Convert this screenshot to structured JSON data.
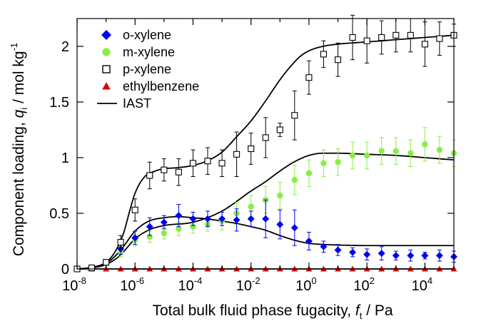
{
  "chart_data": {
    "type": "scatter",
    "x_scale": "log",
    "xlim": [
      1e-08,
      100000
    ],
    "ylim": [
      0,
      2.25
    ],
    "x_ticks": [
      1e-08,
      1e-06,
      0.0001,
      0.01,
      1,
      100,
      10000
    ],
    "y_ticks": [
      0,
      0.5,
      1,
      1.5,
      2
    ],
    "x_tick_labels": [
      {
        "base": "10",
        "exp": "-8"
      },
      {
        "base": "10",
        "exp": "-6"
      },
      {
        "base": "10",
        "exp": "-4"
      },
      {
        "base": "10",
        "exp": "-2"
      },
      {
        "base": "10",
        "exp": "0"
      },
      {
        "base": "10",
        "exp": "2"
      },
      {
        "base": "10",
        "exp": "4"
      }
    ],
    "y_tick_labels": [
      "0",
      "0.5",
      "1",
      "1.5",
      "2"
    ],
    "xlabel": {
      "pre": "Total bulk fluid phase fugacity, ",
      "sym": "f",
      "sub": "t",
      "post": " / Pa"
    },
    "ylabel": {
      "pre": "Component loading, ",
      "sym": "q",
      "sub": "i",
      "post": " / mol kg",
      "sup": "-1"
    },
    "grid": false,
    "legend_position": "top-left",
    "series": [
      {
        "name": "o-xylene",
        "marker": "diamond",
        "color": "#0000ee",
        "x": [
          1e-08,
          3.2e-08,
          1e-07,
          3.2e-07,
          1e-06,
          3.2e-06,
          1e-05,
          3.2e-05,
          0.0001,
          0.00032,
          0.001,
          0.0032,
          0.01,
          0.032,
          0.1,
          0.32,
          1,
          3.2,
          10,
          32,
          100,
          320,
          1000,
          3200,
          10000,
          32000,
          100000
        ],
        "y": [
          0,
          0.01,
          0.06,
          0.18,
          0.28,
          0.38,
          0.42,
          0.48,
          0.45,
          0.45,
          0.45,
          0.44,
          0.45,
          0.45,
          0.4,
          0.37,
          0.25,
          0.2,
          0.17,
          0.15,
          0.13,
          0.14,
          0.12,
          0.12,
          0.12,
          0.12,
          0.11
        ],
        "err": [
          0,
          0.01,
          0.02,
          0.05,
          0.06,
          0.08,
          0.06,
          0.1,
          0.06,
          0.07,
          0.06,
          0.1,
          0.07,
          0.17,
          0.13,
          0.16,
          0.08,
          0.05,
          0.05,
          0.04,
          0.05,
          0.06,
          0.04,
          0.05,
          0.03,
          0.05,
          0.05
        ]
      },
      {
        "name": "m-xylene",
        "marker": "circle",
        "color": "#88ee44",
        "x": [
          1e-08,
          3.2e-08,
          1e-07,
          3.2e-07,
          1e-06,
          3.2e-06,
          1e-05,
          3.2e-05,
          0.0001,
          0.00032,
          0.001,
          0.0032,
          0.01,
          0.032,
          0.1,
          0.32,
          1,
          3.2,
          10,
          32,
          100,
          320,
          1000,
          3200,
          10000,
          32000,
          100000
        ],
        "y": [
          0,
          0.01,
          0.05,
          0.15,
          0.26,
          0.29,
          0.32,
          0.36,
          0.38,
          0.4,
          0.43,
          0.5,
          0.56,
          0.62,
          0.66,
          0.8,
          0.86,
          0.95,
          0.96,
          1.02,
          1.02,
          1.06,
          1.06,
          1.04,
          1.12,
          1.07,
          1.04
        ],
        "err": [
          0,
          0.01,
          0.02,
          0.04,
          0.05,
          0.05,
          0.05,
          0.06,
          0.06,
          0.06,
          0.08,
          0.1,
          0.1,
          0.12,
          0.12,
          0.13,
          0.12,
          0.12,
          0.12,
          0.12,
          0.12,
          0.12,
          0.12,
          0.12,
          0.15,
          0.12,
          0.12
        ]
      },
      {
        "name": "p-xylene",
        "marker": "square-open",
        "color": "#000000",
        "x": [
          1e-08,
          3.2e-08,
          1e-07,
          3.2e-07,
          1e-06,
          3.2e-06,
          1e-05,
          3.2e-05,
          0.0001,
          0.00032,
          0.001,
          0.0032,
          0.01,
          0.032,
          0.1,
          0.32,
          1,
          3.2,
          10,
          32,
          100,
          320,
          1000,
          3200,
          10000,
          32000,
          100000
        ],
        "y": [
          0,
          0.01,
          0.06,
          0.24,
          0.53,
          0.84,
          0.89,
          0.87,
          0.95,
          0.97,
          0.95,
          1.03,
          1.08,
          1.18,
          1.25,
          1.38,
          1.72,
          1.93,
          1.88,
          2.08,
          2.05,
          2.08,
          2.1,
          2.1,
          2.02,
          2.07,
          2.1
        ],
        "err": [
          0,
          0.01,
          0.02,
          0.06,
          0.1,
          0.12,
          0.1,
          0.12,
          0.12,
          0.12,
          0.12,
          0.2,
          0.14,
          0.18,
          0.06,
          0.22,
          0.15,
          0.12,
          0.15,
          0.2,
          0.2,
          0.15,
          0.15,
          0.15,
          0.2,
          0.15,
          0.1
        ]
      },
      {
        "name": "ethylbenzene",
        "marker": "triangle",
        "color": "#dd0000",
        "x": [
          1e-08,
          3.2e-08,
          1e-07,
          3.2e-07,
          1e-06,
          3.2e-06,
          1e-05,
          3.2e-05,
          0.0001,
          0.00032,
          0.001,
          0.0032,
          0.01,
          0.032,
          0.1,
          0.32,
          1,
          3.2,
          10,
          32,
          100,
          320,
          1000,
          3200,
          10000,
          32000,
          100000
        ],
        "y": [
          0,
          0,
          0,
          0,
          0,
          0,
          0,
          0,
          0,
          0,
          0,
          0,
          0,
          0,
          0,
          0,
          0,
          0,
          0,
          0,
          0,
          0,
          0,
          0,
          0,
          0,
          0
        ],
        "err": []
      }
    ],
    "iast": {
      "name": "IAST",
      "color": "#000000",
      "curves": [
        {
          "x": [
            1e-08,
            3.2e-08,
            1e-07,
            2e-07,
            4e-07,
            7e-07,
            1e-06,
            2e-06,
            5e-06,
            1e-05,
            3e-05,
            0.0001,
            0.0003,
            0.001,
            0.003,
            0.01,
            0.03,
            0.1,
            0.2,
            0.5,
            1,
            3,
            10,
            100,
            1000,
            10000,
            100000
          ],
          "y": [
            0,
            0.015,
            0.06,
            0.15,
            0.32,
            0.55,
            0.68,
            0.82,
            0.88,
            0.9,
            0.91,
            0.93,
            0.97,
            1.05,
            1.18,
            1.33,
            1.5,
            1.7,
            1.8,
            1.91,
            1.96,
            2.0,
            2.02,
            2.04,
            2.06,
            2.08,
            2.1
          ]
        },
        {
          "x": [
            1e-08,
            3.2e-08,
            1e-07,
            3e-07,
            1e-06,
            3e-06,
            1e-05,
            0.0001,
            0.001,
            0.01,
            0.03,
            0.1,
            0.3,
            1,
            3,
            10,
            100,
            1000,
            10000,
            100000
          ],
          "y": [
            0,
            0.01,
            0.04,
            0.12,
            0.27,
            0.35,
            0.39,
            0.42,
            0.52,
            0.7,
            0.78,
            0.88,
            0.96,
            1.02,
            1.04,
            1.04,
            1.03,
            1.02,
            1.0,
            0.98
          ]
        },
        {
          "x": [
            1e-08,
            3.2e-08,
            1e-07,
            3e-07,
            1e-06,
            3e-06,
            1e-05,
            3e-05,
            0.0001,
            0.0003,
            0.001,
            0.003,
            0.01,
            0.03,
            0.1,
            0.3,
            1,
            3,
            10,
            100,
            1000,
            10000,
            100000
          ],
          "y": [
            0,
            0.01,
            0.05,
            0.16,
            0.34,
            0.43,
            0.46,
            0.47,
            0.46,
            0.45,
            0.43,
            0.41,
            0.38,
            0.35,
            0.3,
            0.26,
            0.23,
            0.22,
            0.215,
            0.21,
            0.21,
            0.21,
            0.21
          ]
        },
        {
          "x": [
            1e-08,
            100000
          ],
          "y": [
            0,
            0
          ]
        }
      ]
    }
  }
}
